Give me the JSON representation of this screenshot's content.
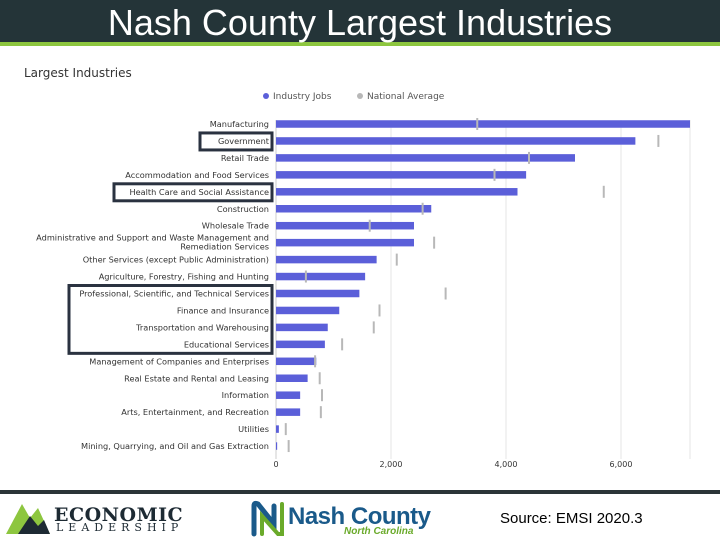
{
  "slide": {
    "title": "Nash County Largest Industries",
    "source": "Source: EMSI 2020.3"
  },
  "logos": {
    "economic": "ECONOMIC",
    "leadership": "LEADERSHIP",
    "nash": "Nash County",
    "nash_sub": "North Carolina"
  },
  "colors": {
    "industry_jobs": "#5b5fd9",
    "national_average": "#b8b8b8",
    "title_bar": "#243438",
    "accent_green": "#8dc63f"
  },
  "chart_data": {
    "type": "bar",
    "orientation": "horizontal",
    "title": "Largest Industries",
    "legend": {
      "placement": "top-center",
      "entries": [
        "Industry Jobs",
        "National Average"
      ]
    },
    "xlim": [
      0,
      7200
    ],
    "xticks": [
      0,
      2000,
      4000,
      6000
    ],
    "xtick_labels": [
      "0",
      "2,000",
      "4,000",
      "6,000"
    ],
    "grid": true,
    "categories": [
      "Manufacturing",
      "Government",
      "Retail Trade",
      "Accommodation and Food Services",
      "Health Care and Social Assistance",
      "Construction",
      "Wholesale Trade",
      [
        "Administrative and Support and Waste Management and",
        "Remediation Services"
      ],
      "Other Services (except Public Administration)",
      "Agriculture, Forestry, Fishing and Hunting",
      "Professional, Scientific, and Technical Services",
      "Finance and Insurance",
      "Transportation and Warehousing",
      "Educational Services",
      "Management of Companies and Enterprises",
      "Real Estate and Rental and Leasing",
      "Information",
      "Arts, Entertainment, and Recreation",
      "Utilities",
      "Mining, Quarrying, and Oil and Gas Extraction"
    ],
    "series": [
      {
        "name": "Industry Jobs",
        "values": [
          7200,
          6250,
          5200,
          4350,
          4200,
          2700,
          2400,
          2400,
          1750,
          1550,
          1450,
          1100,
          900,
          850,
          700,
          550,
          420,
          420,
          50,
          20
        ]
      },
      {
        "name": "National Average",
        "values": [
          3500,
          6650,
          4400,
          3800,
          5700,
          2550,
          1630,
          2750,
          2100,
          520,
          2950,
          1800,
          1700,
          1150,
          680,
          760,
          800,
          780,
          170,
          220
        ]
      }
    ],
    "highlighted_categories": [
      "Government",
      "Health Care and Social Assistance",
      "Professional, Scientific, and Technical Services",
      "Finance and Insurance",
      "Transportation and Warehousing",
      "Educational Services"
    ]
  }
}
